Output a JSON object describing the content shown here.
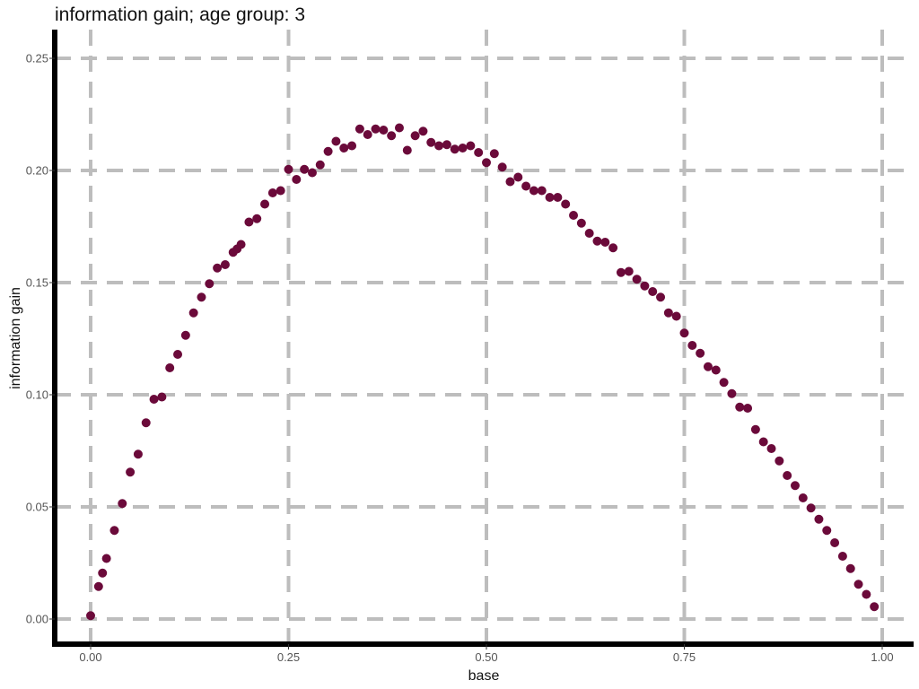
{
  "chart_data": {
    "type": "scatter",
    "title": "information gain; age group: 3",
    "xlabel": "base",
    "ylabel": "information gain",
    "xlim": [
      0,
      1
    ],
    "ylim": [
      0,
      0.25
    ],
    "x_ticks": [
      "0.00",
      "0.25",
      "0.50",
      "0.75",
      "1.00"
    ],
    "y_ticks": [
      "0.00",
      "0.05",
      "0.10",
      "0.15",
      "0.20",
      "0.25"
    ],
    "grid": true,
    "grid_style": "dashed",
    "legend": "none",
    "colors": {
      "point": "#6b0a3a",
      "grid": "#bdbdbd",
      "axis": "#000000"
    },
    "x": [
      0.0,
      0.01,
      0.015,
      0.02,
      0.03,
      0.04,
      0.05,
      0.06,
      0.07,
      0.08,
      0.09,
      0.1,
      0.11,
      0.12,
      0.13,
      0.14,
      0.15,
      0.16,
      0.17,
      0.18,
      0.185,
      0.19,
      0.2,
      0.21,
      0.22,
      0.23,
      0.24,
      0.25,
      0.26,
      0.27,
      0.28,
      0.29,
      0.3,
      0.31,
      0.32,
      0.33,
      0.34,
      0.35,
      0.36,
      0.37,
      0.38,
      0.39,
      0.4,
      0.41,
      0.42,
      0.43,
      0.44,
      0.45,
      0.46,
      0.47,
      0.48,
      0.49,
      0.5,
      0.51,
      0.52,
      0.53,
      0.54,
      0.55,
      0.56,
      0.57,
      0.58,
      0.59,
      0.6,
      0.61,
      0.62,
      0.63,
      0.64,
      0.65,
      0.66,
      0.67,
      0.68,
      0.69,
      0.7,
      0.71,
      0.72,
      0.73,
      0.74,
      0.75,
      0.76,
      0.77,
      0.78,
      0.79,
      0.8,
      0.81,
      0.82,
      0.83,
      0.84,
      0.85,
      0.86,
      0.87,
      0.88,
      0.89,
      0.9,
      0.91,
      0.92,
      0.93,
      0.94,
      0.95,
      0.96,
      0.97,
      0.98,
      0.99
    ],
    "y": [
      0.0015,
      0.0145,
      0.0205,
      0.027,
      0.0395,
      0.0515,
      0.0655,
      0.0735,
      0.0875,
      0.098,
      0.099,
      0.112,
      0.118,
      0.1265,
      0.1365,
      0.1435,
      0.1495,
      0.1565,
      0.158,
      0.1635,
      0.165,
      0.167,
      0.177,
      0.1785,
      0.185,
      0.19,
      0.191,
      0.2005,
      0.196,
      0.2005,
      0.199,
      0.2025,
      0.2085,
      0.213,
      0.21,
      0.211,
      0.2185,
      0.216,
      0.2185,
      0.218,
      0.2155,
      0.219,
      0.209,
      0.2155,
      0.2175,
      0.2125,
      0.211,
      0.2115,
      0.2095,
      0.21,
      0.211,
      0.208,
      0.2035,
      0.2075,
      0.2015,
      0.195,
      0.197,
      0.193,
      0.191,
      0.191,
      0.188,
      0.188,
      0.185,
      0.18,
      0.1765,
      0.172,
      0.1685,
      0.168,
      0.1655,
      0.1545,
      0.155,
      0.1515,
      0.1485,
      0.146,
      0.1435,
      0.1365,
      0.135,
      0.1275,
      0.122,
      0.1185,
      0.1125,
      0.111,
      0.1055,
      0.1005,
      0.0945,
      0.094,
      0.0845,
      0.079,
      0.076,
      0.0705,
      0.064,
      0.0595,
      0.054,
      0.0495,
      0.0445,
      0.0395,
      0.034,
      0.028,
      0.0225,
      0.0155,
      0.011,
      0.0055
    ]
  }
}
